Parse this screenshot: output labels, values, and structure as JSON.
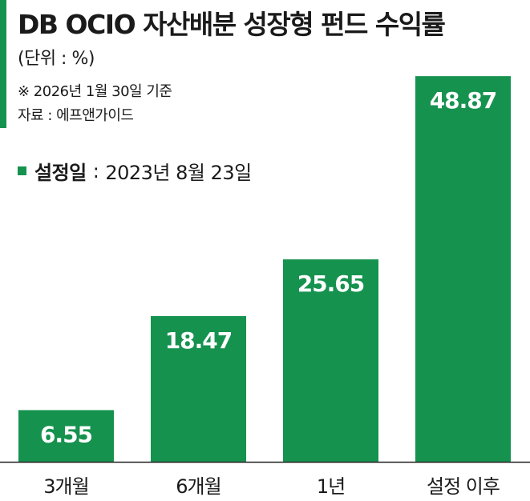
{
  "header": {
    "title": "DB OCIO 자산배분 성장형 펀드 수익률",
    "unit": "(단위 : %)",
    "note": "※ 2026년 1월 30일 기준",
    "source": "자료 : 에프앤가이드"
  },
  "legend": {
    "label": "설정일",
    "separator": ":",
    "value": "2023년 8월 23일"
  },
  "colors": {
    "accent": "#16924f",
    "bar": "#16924f",
    "bar_label": "#ffffff",
    "text": "#1a1a1a"
  },
  "chart_data": {
    "type": "bar",
    "title": "DB OCIO 자산배분 성장형 펀드 수익률",
    "xlabel": "",
    "ylabel": "",
    "unit": "%",
    "categories": [
      "3개월",
      "6개월",
      "1년",
      "설정 이후"
    ],
    "values": [
      6.55,
      18.47,
      25.65,
      48.87
    ],
    "value_labels": [
      "6.55",
      "18.47",
      "25.65",
      "48.87"
    ],
    "ylim": [
      0,
      50
    ],
    "grid": false,
    "legend": "none"
  }
}
